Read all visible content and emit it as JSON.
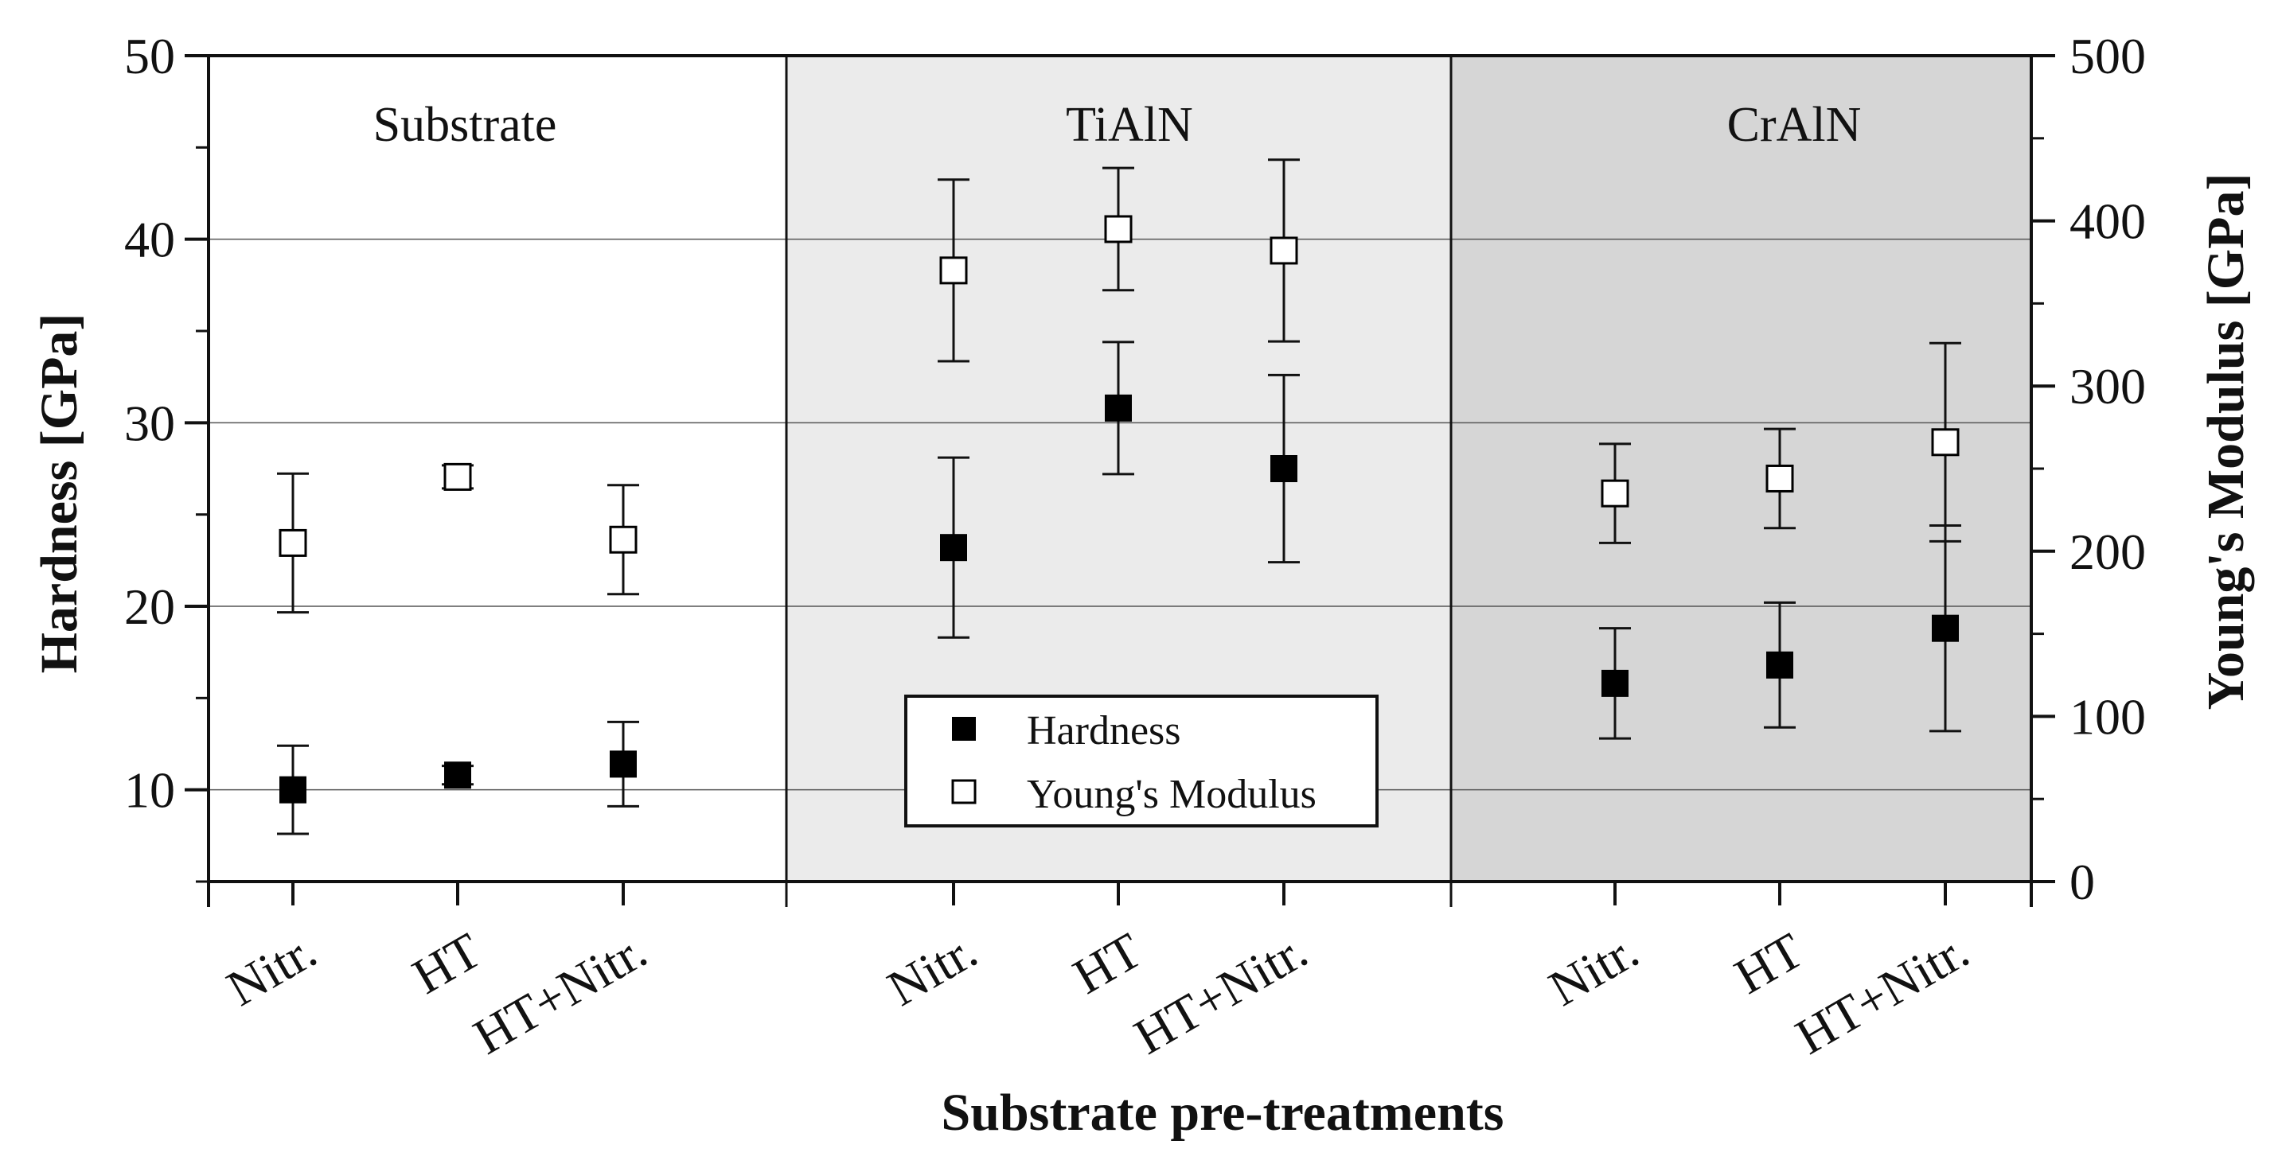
{
  "chart_data": {
    "type": "scatter",
    "xlabel": "Substrate pre-treatments",
    "ylabel_left": "Hardness [GPa]",
    "ylabel_right": "Young's Modulus [GPa]",
    "ylim_left": [
      5,
      50
    ],
    "ylim_right": [
      0,
      500
    ],
    "yticks_left": [
      10,
      20,
      30,
      40,
      50
    ],
    "yticks_right": [
      0,
      100,
      200,
      300,
      400,
      500
    ],
    "gridlines_left": [
      10,
      20,
      30,
      40
    ],
    "groups": [
      {
        "name": "Substrate",
        "shade": "#ffffff",
        "categories": [
          "Nitr.",
          "HT",
          "HT+Nitr."
        ]
      },
      {
        "name": "TiAlN",
        "shade": "#ebebeb",
        "categories": [
          "Nitr.",
          "HT",
          "HT+Nitr."
        ]
      },
      {
        "name": "CrAlN",
        "shade": "#d6d6d6",
        "categories": [
          "Nitr.",
          "HT",
          "HT+Nitr."
        ]
      }
    ],
    "series": [
      {
        "name": "Hardness",
        "axis": "left",
        "marker": "filled-square",
        "values": [
          10.0,
          10.8,
          11.4,
          23.2,
          30.8,
          27.5,
          15.8,
          16.8,
          18.8
        ],
        "errors": [
          2.4,
          0.5,
          2.3,
          4.9,
          3.6,
          5.1,
          3.0,
          3.4,
          5.6
        ]
      },
      {
        "name": "Young's Modulus",
        "axis": "right",
        "marker": "open-square",
        "values": [
          205,
          245,
          207,
          370,
          395,
          382,
          235,
          244,
          266
        ],
        "errors": [
          42,
          7,
          33,
          55,
          37,
          55,
          30,
          30,
          60
        ]
      }
    ],
    "legend": {
      "position": "center-bottom",
      "entries": [
        "Hardness",
        "Young's Modulus"
      ]
    }
  }
}
